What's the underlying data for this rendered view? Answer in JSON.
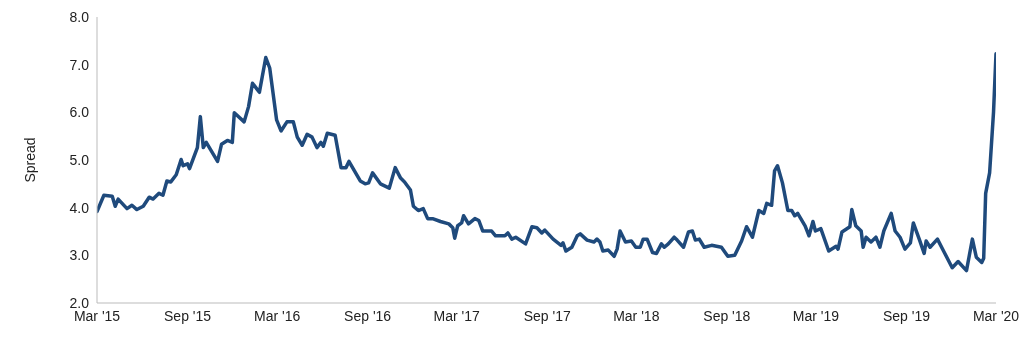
{
  "chart_data": {
    "type": "line",
    "ylabel": "Spread",
    "color": "#1f4a7c",
    "line_style": "solid",
    "marker": "none",
    "grid": false,
    "legend": false,
    "x": [
      "2015-03-01",
      "2015-03-15",
      "2015-04-01",
      "2015-04-07",
      "2015-04-13",
      "2015-05-01",
      "2015-05-11",
      "2015-05-21",
      "2015-06-03",
      "2015-06-15",
      "2015-06-23",
      "2015-07-05",
      "2015-07-13",
      "2015-07-21",
      "2015-07-29",
      "2015-08-09",
      "2015-08-19",
      "2015-08-23",
      "2015-09-01",
      "2015-09-05",
      "2015-09-21",
      "2015-09-27",
      "2015-10-03",
      "2015-10-09",
      "2015-11-01",
      "2015-11-09",
      "2015-11-21",
      "2015-12-01",
      "2015-12-05",
      "2015-12-25",
      "2016-01-03",
      "2016-01-11",
      "2016-01-25",
      "2016-02-07",
      "2016-02-15",
      "2016-02-29",
      "2016-03-09",
      "2016-03-21",
      "2016-04-03",
      "2016-04-11",
      "2016-04-21",
      "2016-05-01",
      "2016-05-11",
      "2016-05-21",
      "2016-05-29",
      "2016-06-03",
      "2016-06-11",
      "2016-06-27",
      "2016-07-09",
      "2016-07-19",
      "2016-07-25",
      "2016-08-17",
      "2016-08-27",
      "2016-09-03",
      "2016-09-11",
      "2016-09-27",
      "2016-10-15",
      "2016-10-27",
      "2016-11-07",
      "2016-11-15",
      "2016-11-27",
      "2016-12-03",
      "2016-12-13",
      "2016-12-23",
      "2017-01-01",
      "2017-01-11",
      "2017-01-27",
      "2017-02-13",
      "2017-02-21",
      "2017-02-25",
      "2017-03-03",
      "2017-03-11",
      "2017-03-15",
      "2017-03-25",
      "2017-04-07",
      "2017-04-15",
      "2017-04-23",
      "2017-05-11",
      "2017-05-19",
      "2017-06-07",
      "2017-06-13",
      "2017-06-21",
      "2017-06-29",
      "2017-07-19",
      "2017-08-01",
      "2017-08-11",
      "2017-08-21",
      "2017-08-27",
      "2017-09-13",
      "2017-09-29",
      "2017-10-03",
      "2017-10-09",
      "2017-10-21",
      "2017-11-01",
      "2017-11-07",
      "2017-11-21",
      "2017-12-05",
      "2017-12-11",
      "2017-12-17",
      "2017-12-23",
      "2018-01-03",
      "2018-01-15",
      "2018-01-21",
      "2018-01-27",
      "2018-02-07",
      "2018-02-19",
      "2018-02-28",
      "2018-03-09",
      "2018-03-15",
      "2018-03-23",
      "2018-04-03",
      "2018-04-11",
      "2018-04-21",
      "2018-04-27",
      "2018-05-05",
      "2018-05-17",
      "2018-05-23",
      "2018-06-05",
      "2018-06-15",
      "2018-06-23",
      "2018-06-29",
      "2018-07-07",
      "2018-07-17",
      "2018-08-01",
      "2018-08-21",
      "2018-09-03",
      "2018-09-17",
      "2018-10-01",
      "2018-10-11",
      "2018-10-23",
      "2018-11-05",
      "2018-11-15",
      "2018-11-21",
      "2018-12-01",
      "2018-12-07",
      "2018-12-13",
      "2018-12-23",
      "2019-01-03",
      "2019-01-11",
      "2019-01-17",
      "2019-01-23",
      "2019-02-07",
      "2019-02-15",
      "2019-02-23",
      "2019-02-28",
      "2019-03-11",
      "2019-03-27",
      "2019-04-11",
      "2019-04-15",
      "2019-04-23",
      "2019-05-09",
      "2019-05-13",
      "2019-05-21",
      "2019-06-01",
      "2019-06-05",
      "2019-06-11",
      "2019-06-21",
      "2019-07-01",
      "2019-07-09",
      "2019-07-17",
      "2019-08-01",
      "2019-08-09",
      "2019-08-19",
      "2019-08-29",
      "2019-09-09",
      "2019-09-15",
      "2019-09-27",
      "2019-10-07",
      "2019-10-11",
      "2019-10-19",
      "2019-11-03",
      "2019-11-17",
      "2019-12-03",
      "2019-12-15",
      "2020-01-01",
      "2020-01-13",
      "2020-01-21",
      "2020-02-01",
      "2020-02-05",
      "2020-02-09",
      "2020-02-17",
      "2020-02-25",
      "2020-03-01"
    ],
    "values": [
      3.92,
      4.26,
      4.24,
      4.03,
      4.18,
      3.98,
      4.05,
      3.96,
      4.03,
      4.22,
      4.18,
      4.3,
      4.26,
      4.56,
      4.54,
      4.69,
      5.01,
      4.88,
      4.92,
      4.82,
      5.26,
      5.91,
      5.26,
      5.37,
      4.97,
      5.33,
      5.41,
      5.37,
      5.99,
      5.8,
      6.12,
      6.61,
      6.42,
      7.15,
      6.93,
      5.84,
      5.61,
      5.8,
      5.8,
      5.48,
      5.31,
      5.54,
      5.48,
      5.26,
      5.37,
      5.29,
      5.56,
      5.52,
      4.84,
      4.84,
      4.97,
      4.56,
      4.5,
      4.52,
      4.73,
      4.5,
      4.41,
      4.84,
      4.62,
      4.54,
      4.37,
      4.03,
      3.94,
      3.98,
      3.77,
      3.77,
      3.71,
      3.66,
      3.58,
      3.36,
      3.62,
      3.68,
      3.83,
      3.66,
      3.77,
      3.73,
      3.51,
      3.51,
      3.41,
      3.41,
      3.47,
      3.34,
      3.38,
      3.24,
      3.6,
      3.58,
      3.47,
      3.53,
      3.34,
      3.21,
      3.26,
      3.09,
      3.17,
      3.41,
      3.45,
      3.32,
      3.28,
      3.34,
      3.28,
      3.09,
      3.11,
      2.98,
      3.13,
      3.51,
      3.28,
      3.3,
      3.17,
      3.17,
      3.34,
      3.34,
      3.06,
      3.04,
      3.24,
      3.17,
      3.24,
      3.38,
      3.32,
      3.17,
      3.49,
      3.51,
      3.32,
      3.34,
      3.17,
      3.21,
      3.17,
      2.98,
      3.0,
      3.3,
      3.6,
      3.38,
      3.94,
      3.88,
      4.09,
      4.05,
      4.77,
      4.88,
      4.52,
      3.94,
      3.94,
      3.83,
      3.88,
      3.62,
      3.41,
      3.71,
      3.51,
      3.56,
      3.09,
      3.19,
      3.13,
      3.49,
      3.6,
      3.96,
      3.62,
      3.51,
      3.17,
      3.38,
      3.28,
      3.38,
      3.17,
      3.51,
      3.88,
      3.51,
      3.38,
      3.13,
      3.26,
      3.68,
      3.34,
      3.04,
      3.3,
      3.17,
      3.34,
      3.06,
      2.74,
      2.87,
      2.68,
      3.34,
      2.96,
      2.85,
      2.94,
      4.3,
      4.73,
      6.01,
      7.23
    ],
    "xlim": [
      "2015-03-01",
      "2020-03-01"
    ],
    "xticks": [
      {
        "value": "2015-03-01",
        "label": "Mar '15"
      },
      {
        "value": "2015-09-01",
        "label": "Sep '15"
      },
      {
        "value": "2016-03-01",
        "label": "Mar '16"
      },
      {
        "value": "2016-09-01",
        "label": "Sep '16"
      },
      {
        "value": "2017-03-01",
        "label": "Mar '17"
      },
      {
        "value": "2017-09-01",
        "label": "Sep '17"
      },
      {
        "value": "2018-03-01",
        "label": "Mar '18"
      },
      {
        "value": "2018-09-01",
        "label": "Sep '18"
      },
      {
        "value": "2019-03-01",
        "label": "Mar '19"
      },
      {
        "value": "2019-09-01",
        "label": "Sep '19"
      },
      {
        "value": "2020-03-01",
        "label": "Mar '20"
      }
    ],
    "ylim": [
      2,
      8
    ],
    "yticks": [
      {
        "value": 2,
        "label": "2.0"
      },
      {
        "value": 3,
        "label": "3.0"
      },
      {
        "value": 4,
        "label": "4.0"
      },
      {
        "value": 5,
        "label": "5.0"
      },
      {
        "value": 6,
        "label": "6.0"
      },
      {
        "value": 7,
        "label": "7.0"
      },
      {
        "value": 8,
        "label": "8.0"
      }
    ]
  }
}
